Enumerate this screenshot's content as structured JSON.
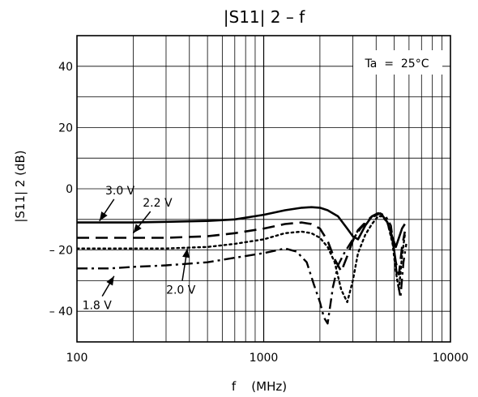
{
  "chart_data": {
    "type": "line",
    "title": "|S11| 2  –  f",
    "xlabel": "f    (MHz)",
    "ylabel": "|S11| 2    (dB)",
    "x_scale": "log",
    "xlim": [
      100,
      10000
    ],
    "ylim": [
      -50,
      50
    ],
    "x_ticks": [
      {
        "value": 100,
        "label": "100"
      },
      {
        "value": 1000,
        "label": "1000"
      },
      {
        "value": 10000,
        "label": "10000"
      }
    ],
    "y_ticks": [
      {
        "value": 40,
        "label": "40"
      },
      {
        "value": 20,
        "label": "20"
      },
      {
        "value": 0,
        "label": "0"
      },
      {
        "value": -20,
        "label": "– 20"
      },
      {
        "value": -40,
        "label": "– 40"
      }
    ],
    "grid": true,
    "annotation": "Ta  =  25°C",
    "series": [
      {
        "name": "3.0 V",
        "style": "solid",
        "width": 2.6,
        "label_arrow": {
          "from": [
            170,
            -0.5
          ],
          "to": [
            132,
            -10.5
          ]
        },
        "x": [
          100,
          150,
          200,
          300,
          500,
          700,
          1000,
          1300,
          1600,
          1800,
          2000,
          2200,
          2500,
          2800,
          3000,
          3200,
          3500,
          3800,
          4100,
          4300,
          4600,
          4900,
          5100,
          5300,
          5500,
          5700
        ],
        "y": [
          -11,
          -11,
          -11,
          -10.8,
          -10.5,
          -10,
          -8.5,
          -7,
          -6.2,
          -6,
          -6.2,
          -7,
          -9,
          -13,
          -15.5,
          -16.5,
          -12,
          -9,
          -8,
          -8.5,
          -11,
          -16,
          -19,
          -16,
          -13,
          -11.5
        ]
      },
      {
        "name": "2.2 V",
        "style": "dashed",
        "width": 2.6,
        "label_arrow": {
          "from": [
            270,
            -4.5
          ],
          "to": [
            200,
            -14.5
          ]
        },
        "x": [
          100,
          150,
          200,
          300,
          500,
          700,
          1000,
          1300,
          1600,
          1800,
          2000,
          2200,
          2400,
          2600,
          2800,
          3000,
          3200,
          3500,
          3800,
          4100,
          4300,
          4600,
          4900,
          5100,
          5300,
          5500,
          5700
        ],
        "y": [
          -16,
          -16,
          -16,
          -16,
          -15.5,
          -14.5,
          -13,
          -11.5,
          -11,
          -11.5,
          -13,
          -17,
          -23,
          -27,
          -22,
          -17,
          -13.5,
          -11,
          -9,
          -8,
          -8.5,
          -11,
          -17,
          -24,
          -28,
          -19,
          -14
        ]
      },
      {
        "name": "2.0 V",
        "style": "dotted",
        "width": 2.4,
        "label_arrow": {
          "from": [
            360,
            -33
          ],
          "to": [
            390,
            -19.5
          ]
        },
        "x": [
          100,
          150,
          200,
          300,
          500,
          700,
          1000,
          1300,
          1600,
          1800,
          2000,
          2200,
          2400,
          2600,
          2800,
          3000,
          3200,
          3500,
          3800,
          4100,
          4300,
          4600,
          4900,
          5100,
          5300,
          5500,
          5700
        ],
        "y": [
          -19.5,
          -19.5,
          -19.5,
          -19.5,
          -19,
          -18,
          -16.5,
          -14.5,
          -14,
          -14.5,
          -16,
          -19,
          -24,
          -33,
          -37,
          -30,
          -21,
          -15,
          -11.5,
          -9,
          -9,
          -11,
          -18,
          -27,
          -33,
          -22,
          -15
        ]
      },
      {
        "name": "1.8 V",
        "style": "dashdot",
        "width": 2.4,
        "label_arrow": {
          "from": [
            128,
            -38
          ],
          "to": [
            158,
            -28.5
          ]
        },
        "x": [
          100,
          150,
          200,
          300,
          500,
          700,
          1000,
          1300,
          1500,
          1700,
          1850,
          2000,
          2100,
          2200,
          2350,
          2500,
          2700,
          3000,
          3300,
          3600,
          3900,
          4200,
          4500,
          4800,
          5000,
          5200,
          5400,
          5600,
          5800
        ],
        "y": [
          -26,
          -26,
          -25.5,
          -25,
          -24,
          -22.5,
          -21,
          -19.5,
          -20.5,
          -24,
          -31,
          -37,
          -42,
          -44,
          -32,
          -25,
          -21,
          -16.5,
          -13,
          -10.5,
          -9,
          -8,
          -9,
          -12,
          -20,
          -30,
          -35.5,
          -24,
          -18
        ]
      }
    ]
  }
}
